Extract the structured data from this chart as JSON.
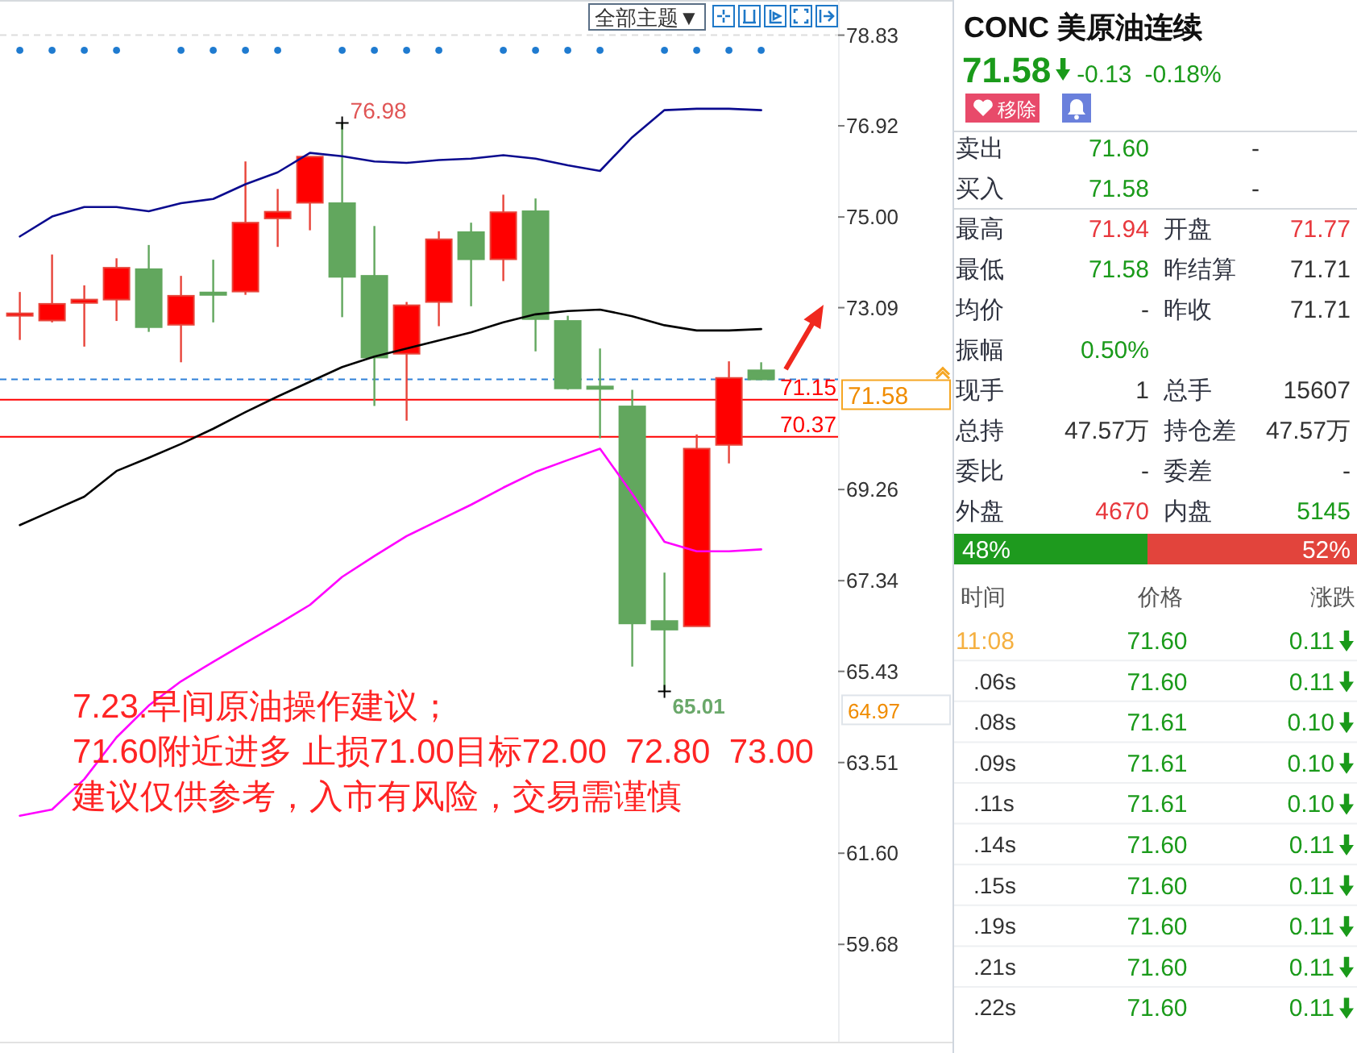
{
  "chart_data": [
    {
      "type": "candlestick",
      "categories": [
        null,
        null,
        null,
        null,
        null,
        null,
        null,
        null,
        null,
        null,
        null,
        null,
        null,
        null,
        null,
        null,
        null,
        null,
        null,
        null,
        null,
        null,
        null,
        null
      ],
      "ohlc": [
        [
          72.96,
          73.42,
          72.41,
          72.97
        ],
        [
          72.82,
          74.21,
          72.78,
          73.17
        ],
        [
          73.19,
          73.56,
          72.27,
          73.26
        ],
        [
          73.26,
          74.13,
          72.81,
          73.93
        ],
        [
          73.9,
          74.41,
          72.58,
          72.68
        ],
        [
          72.73,
          73.76,
          71.94,
          73.34
        ],
        [
          73.41,
          74.1,
          72.78,
          73.4
        ],
        [
          73.43,
          76.17,
          73.36,
          74.88
        ],
        [
          74.97,
          75.59,
          74.37,
          75.11
        ],
        [
          75.3,
          76.27,
          74.72,
          76.27
        ],
        [
          75.29,
          76.98,
          72.89,
          73.74
        ],
        [
          73.76,
          74.81,
          71.02,
          72.04
        ],
        [
          72.12,
          73.21,
          70.71,
          73.14
        ],
        [
          73.21,
          74.7,
          72.7,
          74.53
        ],
        [
          74.68,
          74.88,
          73.12,
          74.11
        ],
        [
          74.11,
          75.47,
          73.65,
          75.1
        ],
        [
          75.12,
          75.39,
          72.17,
          72.85
        ],
        [
          72.81,
          72.92,
          71.36,
          71.39
        ],
        [
          71.43,
          72.23,
          70.34,
          71.39
        ],
        [
          71.01,
          71.36,
          65.53,
          66.44
        ],
        [
          66.49,
          67.51,
          65.01,
          66.31
        ],
        [
          66.38,
          70.42,
          66.38,
          70.12
        ],
        [
          70.2,
          71.96,
          69.81,
          71.61
        ],
        [
          71.77,
          71.94,
          71.58,
          71.58
        ]
      ],
      "series": [
        {
          "type": "line",
          "color": "#0b0b8f",
          "values": [
            74.59,
            75.01,
            75.21,
            75.21,
            75.12,
            75.29,
            75.38,
            75.69,
            75.94,
            76.35,
            76.28,
            76.17,
            76.14,
            76.2,
            76.23,
            76.3,
            76.23,
            76.09,
            75.97,
            76.68,
            77.25,
            77.28,
            77.28,
            77.25
          ]
        },
        {
          "type": "line",
          "color": "#000000",
          "values": [
            68.51,
            68.81,
            69.11,
            69.65,
            69.93,
            70.22,
            70.54,
            70.89,
            71.22,
            71.53,
            71.84,
            72.06,
            72.23,
            72.4,
            72.57,
            72.78,
            72.95,
            73.02,
            73.05,
            72.91,
            72.72,
            72.61,
            72.61,
            72.64
          ]
        },
        {
          "type": "line",
          "color": "#ff00ff",
          "values": [
            62.39,
            62.52,
            63.16,
            64.04,
            64.71,
            65.22,
            65.63,
            66.03,
            66.42,
            66.83,
            67.42,
            67.86,
            68.28,
            68.61,
            68.94,
            69.3,
            69.63,
            69.88,
            70.12,
            69.17,
            68.16,
            67.96,
            67.96,
            68.0
          ]
        },
        {
          "type": "scatter",
          "marker": "circle",
          "color": "#1f7bd0",
          "values": [
            78.51,
            78.51,
            78.51,
            78.51,
            null,
            78.51,
            78.51,
            78.51,
            78.51,
            null,
            78.51,
            78.51,
            78.51,
            78.51,
            null,
            78.51,
            78.51,
            78.51,
            78.51,
            null,
            78.51,
            78.51,
            78.51,
            78.51
          ]
        }
      ],
      "ylim": [
        57.63,
        79.57
      ],
      "yticks": [
        78.83,
        76.92,
        {
          "value": 75,
          "label": "75.00"
        },
        73.09,
        69.26,
        67.34,
        65.43,
        63.51,
        {
          "value": 61.6,
          "label": "61.60"
        },
        59.68
      ],
      "tick_labels": "y",
      "ref_lines": [
        {
          "axis": "y",
          "value": 78.83,
          "color": "#dddddd",
          "line_style": "dashed"
        },
        {
          "axis": "y",
          "value": 71.58,
          "label": "71.58",
          "color": "#2f80d8",
          "line_style": "dashed"
        },
        {
          "axis": "y",
          "value": 71.15,
          "label": "71.15",
          "color": "#ff0000"
        },
        {
          "axis": "y",
          "value": 70.37,
          "label": "70.37",
          "color": "#ff0000"
        }
      ],
      "annotations": [
        "全部主题▼",
        "76.98",
        "65.01",
        "64.97",
        "7.23.早间原油操作建议；",
        "71.60附近进多 止损71.00目标72.00  72.80  73.00",
        "建议仅供参考，入市有风险，交易需谨慎"
      ]
    },
    {
      "type": "other",
      "title": "CONC 美原油连续",
      "annotations": [
        "71.58",
        "-0.13",
        "-0.18%",
        "移除",
        "卖出",
        "71.60",
        "-",
        "买入",
        "71.58",
        "-",
        "最高",
        "71.94",
        "开盘",
        "71.77",
        "最低",
        "71.58",
        "昨结算",
        "71.71",
        "均价",
        "-",
        "昨收",
        "71.71",
        "振幅",
        "0.50%",
        "现手",
        "1",
        "总手",
        "15607",
        "总持",
        "47.57万",
        "持仓差",
        "47.57万",
        "委比",
        "-",
        "委差",
        "-",
        "外盘",
        "4670",
        "内盘",
        "5145"
      ]
    },
    {
      "type": "bar",
      "orientation": "horizontal",
      "stacked": true,
      "categories": [
        null
      ],
      "series": [
        {
          "color": "#1e9a1e",
          "values": [
            48
          ],
          "value_labels": [
            "48%"
          ]
        },
        {
          "color": "#e2443c",
          "values": [
            52
          ],
          "value_labels": [
            "52%"
          ]
        }
      ],
      "xlim": [
        0,
        100
      ],
      "tick_labels": false
    },
    {
      "type": "other",
      "annotations": [
        "时间",
        "价格",
        "涨跌",
        "11:08",
        "71.60",
        "0.11",
        ".06s",
        "71.60",
        "0.11",
        ".08s",
        "71.61",
        "0.10",
        ".09s",
        "71.61",
        "0.10",
        ".11s",
        "71.61",
        "0.10",
        ".14s",
        "71.60",
        "0.11",
        ".15s",
        "71.60",
        "0.11",
        ".19s",
        "71.60",
        "0.11",
        ".21s",
        "71.60",
        "0.11",
        ".22s",
        "71.60",
        "0.11"
      ]
    }
  ]
}
